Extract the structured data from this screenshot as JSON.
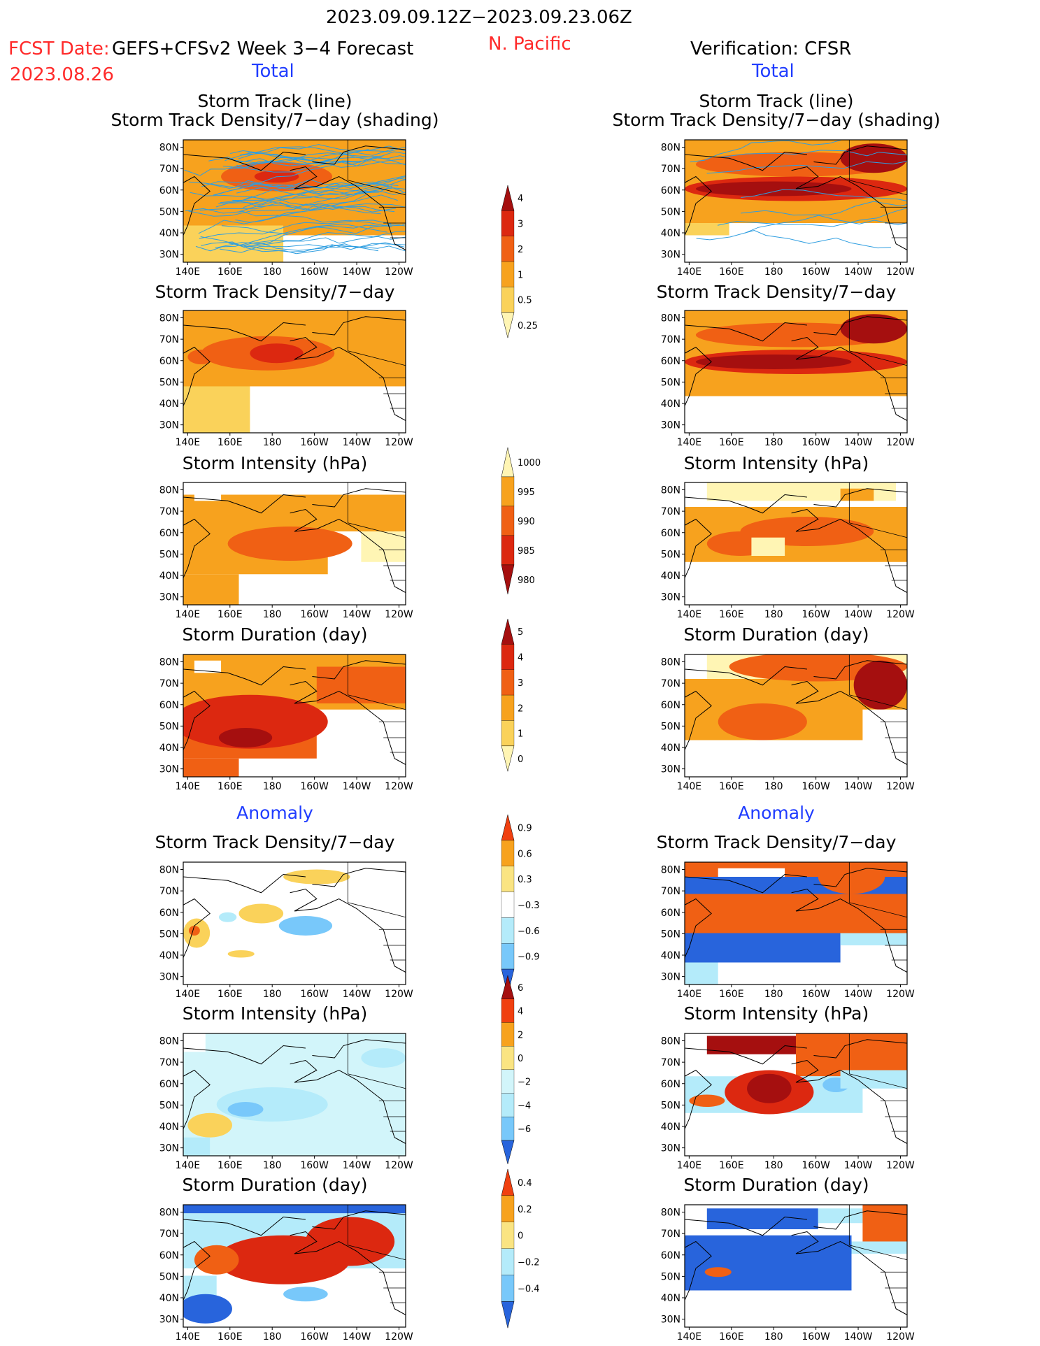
{
  "header": {
    "date_range": "2023.09.09.12Z−2023.09.23.06Z",
    "fcst_label": "FCST Date:",
    "fcst_model": "GEFS+CFSv2 Week 3−4 Forecast",
    "fcst_date": "2023.08.26",
    "region": "N. Pacific",
    "verification": "Verification: CFSR",
    "left_total": "Total",
    "right_total": "Total",
    "left_anomaly": "Anomaly",
    "right_anomaly": "Anomaly"
  },
  "panel_titles": {
    "track_line": "Storm Track (line)",
    "track_shading": "Storm Track Density/7−day (shading)",
    "density": "Storm Track Density/7−day",
    "intensity": "Storm Intensity (hPa)",
    "duration": "Storm Duration (day)"
  },
  "map_axes": {
    "lat_labels": [
      "80N",
      "70N",
      "60N",
      "50N",
      "40N",
      "30N"
    ],
    "lon_labels": [
      "140E",
      "160E",
      "180",
      "160W",
      "140W",
      "120W"
    ]
  },
  "colorbars": [
    {
      "id": "density_total",
      "labels": [
        "4",
        "3",
        "2",
        "1",
        "0.5",
        "0.25"
      ],
      "colors": [
        "#a50f0f",
        "#dc2810",
        "#f06014",
        "#f7a21e",
        "#fad25a",
        "#fff5b4"
      ]
    },
    {
      "id": "intensity_total",
      "labels": [
        "1000",
        "995",
        "990",
        "985",
        "980"
      ],
      "colors": [
        "#fff5b4",
        "#f7a21e",
        "#f06014",
        "#dc2810",
        "#a50f0f"
      ]
    },
    {
      "id": "duration_total",
      "labels": [
        "5",
        "4",
        "3",
        "2",
        "1",
        "0"
      ],
      "colors": [
        "#a50f0f",
        "#dc2810",
        "#f06014",
        "#f7a21e",
        "#fad25a",
        "#fff5b4"
      ]
    },
    {
      "id": "density_anom",
      "labels": [
        "0.9",
        "0.6",
        "0.3",
        "−0.3",
        "−0.6",
        "−0.9"
      ],
      "colors": [
        "#f04010",
        "#f7a21e",
        "#fae482",
        "#ffffff",
        "#b4ebfa",
        "#78c8fa",
        "#2864dc"
      ]
    },
    {
      "id": "intensity_anom",
      "labels": [
        "6",
        "4",
        "2",
        "0",
        "−2",
        "−4",
        "−6"
      ],
      "colors": [
        "#a50f0f",
        "#f04010",
        "#f7a21e",
        "#fae482",
        "#d2f5fa",
        "#b4ebfa",
        "#78c8fa",
        "#2864dc"
      ]
    },
    {
      "id": "duration_anom",
      "labels": [
        "0.4",
        "0.2",
        "0",
        "−0.2",
        "−0.4"
      ],
      "colors": [
        "#f04010",
        "#f7a21e",
        "#fae482",
        "#b4ebfa",
        "#78c8fa",
        "#2864dc"
      ]
    }
  ],
  "colors": {
    "yellow_light": "#fff5b4",
    "yellow": "#fad25a",
    "orange_light": "#f7a21e",
    "orange": "#f06014",
    "red": "#dc2810",
    "dark_red": "#a50f0f",
    "blue_pale": "#d2f5fa",
    "blue_light": "#b4ebfa",
    "blue_mid": "#78c8fa",
    "blue_dark": "#2864dc",
    "track_line": "#2f9ee0"
  }
}
